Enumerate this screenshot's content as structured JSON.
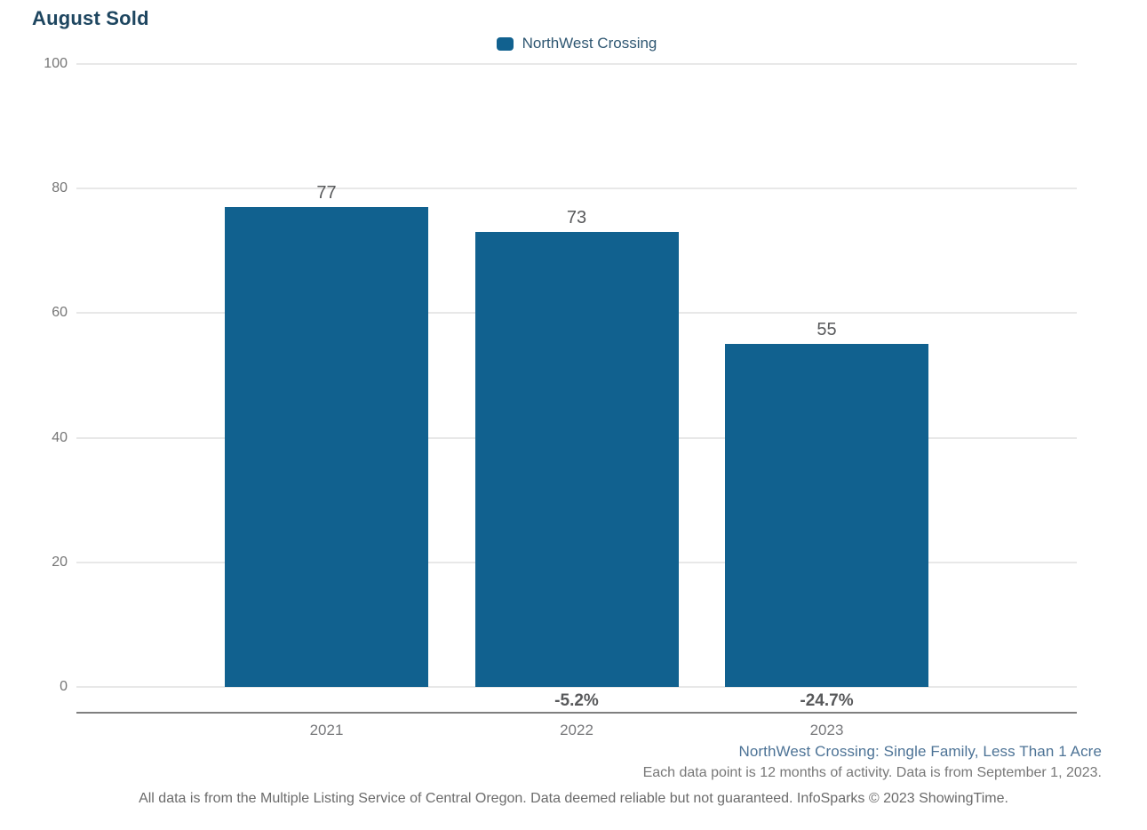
{
  "title": "August Sold",
  "legend": {
    "label": "NorthWest Crossing"
  },
  "colors": {
    "bar": "#11618F",
    "title_text": "#1E4660",
    "legend_text": "#2F5772",
    "gridline": "#E8E8E8",
    "axis_line": "#7F7F7F",
    "tick_text": "#757575",
    "value_label_text": "#58595B",
    "pct_label_text": "#58595B",
    "x_tick_text": "#77787B",
    "footnote_series_text": "#4D7396",
    "footnote_gray_text": "#787878",
    "footnote_disclaimer_text": "#6B6B6B"
  },
  "chart_data": {
    "type": "bar",
    "categories": [
      "2021",
      "2022",
      "2023"
    ],
    "series": [
      {
        "name": "NorthWest Crossing",
        "values": [
          77,
          73,
          55
        ]
      }
    ],
    "value_labels": [
      "77",
      "73",
      "55"
    ],
    "pct_change_labels": [
      "",
      "-5.2%",
      "-24.7%"
    ],
    "title": "August Sold",
    "xlabel": "",
    "ylabel": "",
    "ylim": [
      0,
      100
    ],
    "yticks": [
      0,
      20,
      40,
      60,
      80,
      100
    ],
    "grid": true,
    "legend_position": "top-center"
  },
  "footnotes": {
    "series_description": "NorthWest Crossing: Single Family, Less Than 1 Acre",
    "data_note": "Each data point is 12 months of activity. Data is from September 1, 2023.",
    "disclaimer": "All data is from the Multiple Listing Service of Central Oregon. Data deemed reliable but not guaranteed. InfoSparks © 2023 ShowingTime."
  }
}
